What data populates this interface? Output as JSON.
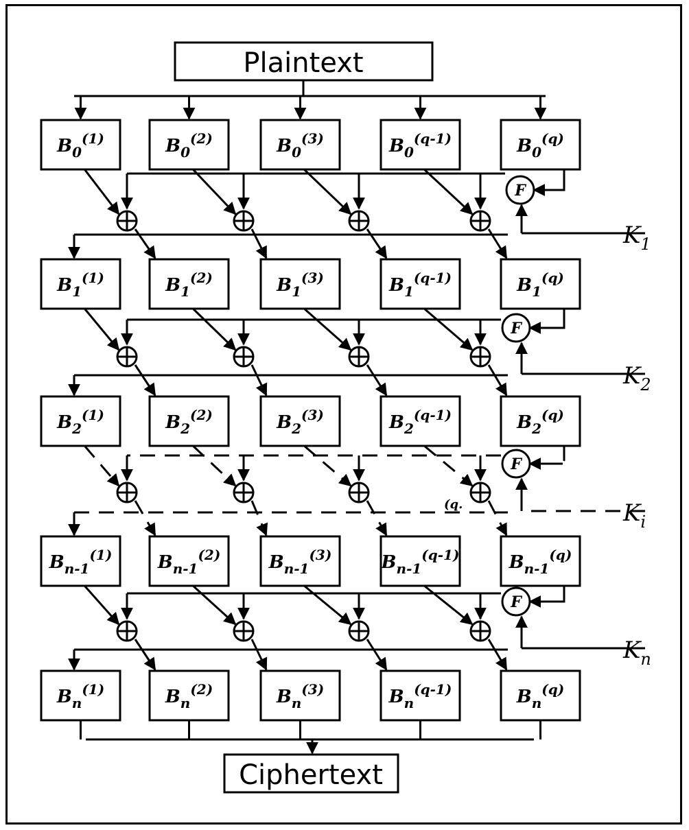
{
  "plaintext_label": "Plaintext",
  "ciphertext_label": "Ciphertext",
  "f_label": "F",
  "rounds": [
    {
      "sub": "0",
      "blocks": [
        "(1)",
        "(2)",
        "(3)",
        "(q-1)",
        "(q)"
      ]
    },
    {
      "sub": "1",
      "blocks": [
        "(1)",
        "(2)",
        "(3)",
        "(q-1)",
        "(q)"
      ]
    },
    {
      "sub": "2",
      "blocks": [
        "(1)",
        "(2)",
        "(3)",
        "(q-1)",
        "(q)"
      ]
    },
    {
      "sub": "n-1",
      "blocks": [
        "(1)",
        "(2)",
        "(3)",
        "(q-1)",
        "(q)"
      ]
    },
    {
      "sub": "n",
      "blocks": [
        "(1)",
        "(2)",
        "(3)",
        "(q-1)",
        "(q)"
      ]
    }
  ],
  "keys": [
    {
      "letter": "K",
      "sub": "1"
    },
    {
      "letter": "K",
      "sub": "2"
    },
    {
      "letter": "K",
      "sub": "i"
    },
    {
      "letter": "K",
      "sub": "n"
    }
  ],
  "stray_label": "(q."
}
